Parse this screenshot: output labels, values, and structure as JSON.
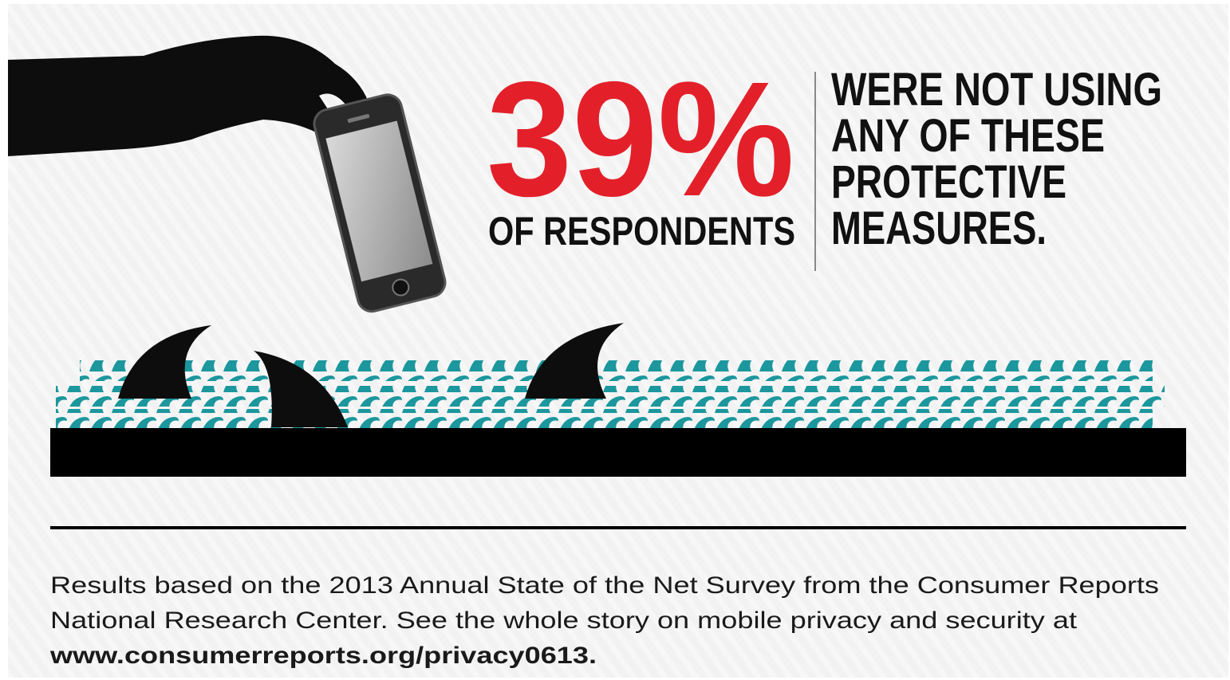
{
  "stat": "39%",
  "stat_caption": "OF RESPONDENTS",
  "statement_lines": [
    "WERE NOT USING",
    "ANY OF THESE",
    "PROTECTIVE",
    "MEASURES."
  ],
  "footnote_lines": [
    "Results based on the 2013 Annual State of the Net Survey from the Consumer Reports",
    "National Research Center. See the whole story on mobile privacy and security at"
  ],
  "footnote_link": "www.consumerreports.org/privacy0613."
}
